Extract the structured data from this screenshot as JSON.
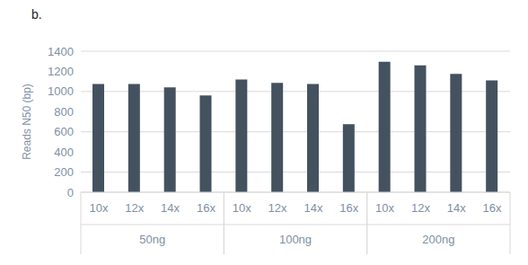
{
  "chart_data": {
    "type": "bar",
    "title": "b.",
    "y_label": "Reads N50 (bp)",
    "categories": [
      "10x",
      "12x",
      "14x",
      "16x",
      "10x",
      "12x",
      "14x",
      "16x",
      "10x",
      "12x",
      "14x",
      "16x"
    ],
    "groups": [
      "50ng",
      "100ng",
      "200ng"
    ],
    "values": [
      1075,
      1075,
      1040,
      960,
      1120,
      1085,
      1075,
      675,
      1295,
      1260,
      1175,
      1110
    ],
    "color": "#44525f",
    "ylim": [
      0,
      1400
    ],
    "yticks": [
      0,
      200,
      400,
      600,
      800,
      1000,
      1200,
      1400
    ],
    "grid": true
  }
}
